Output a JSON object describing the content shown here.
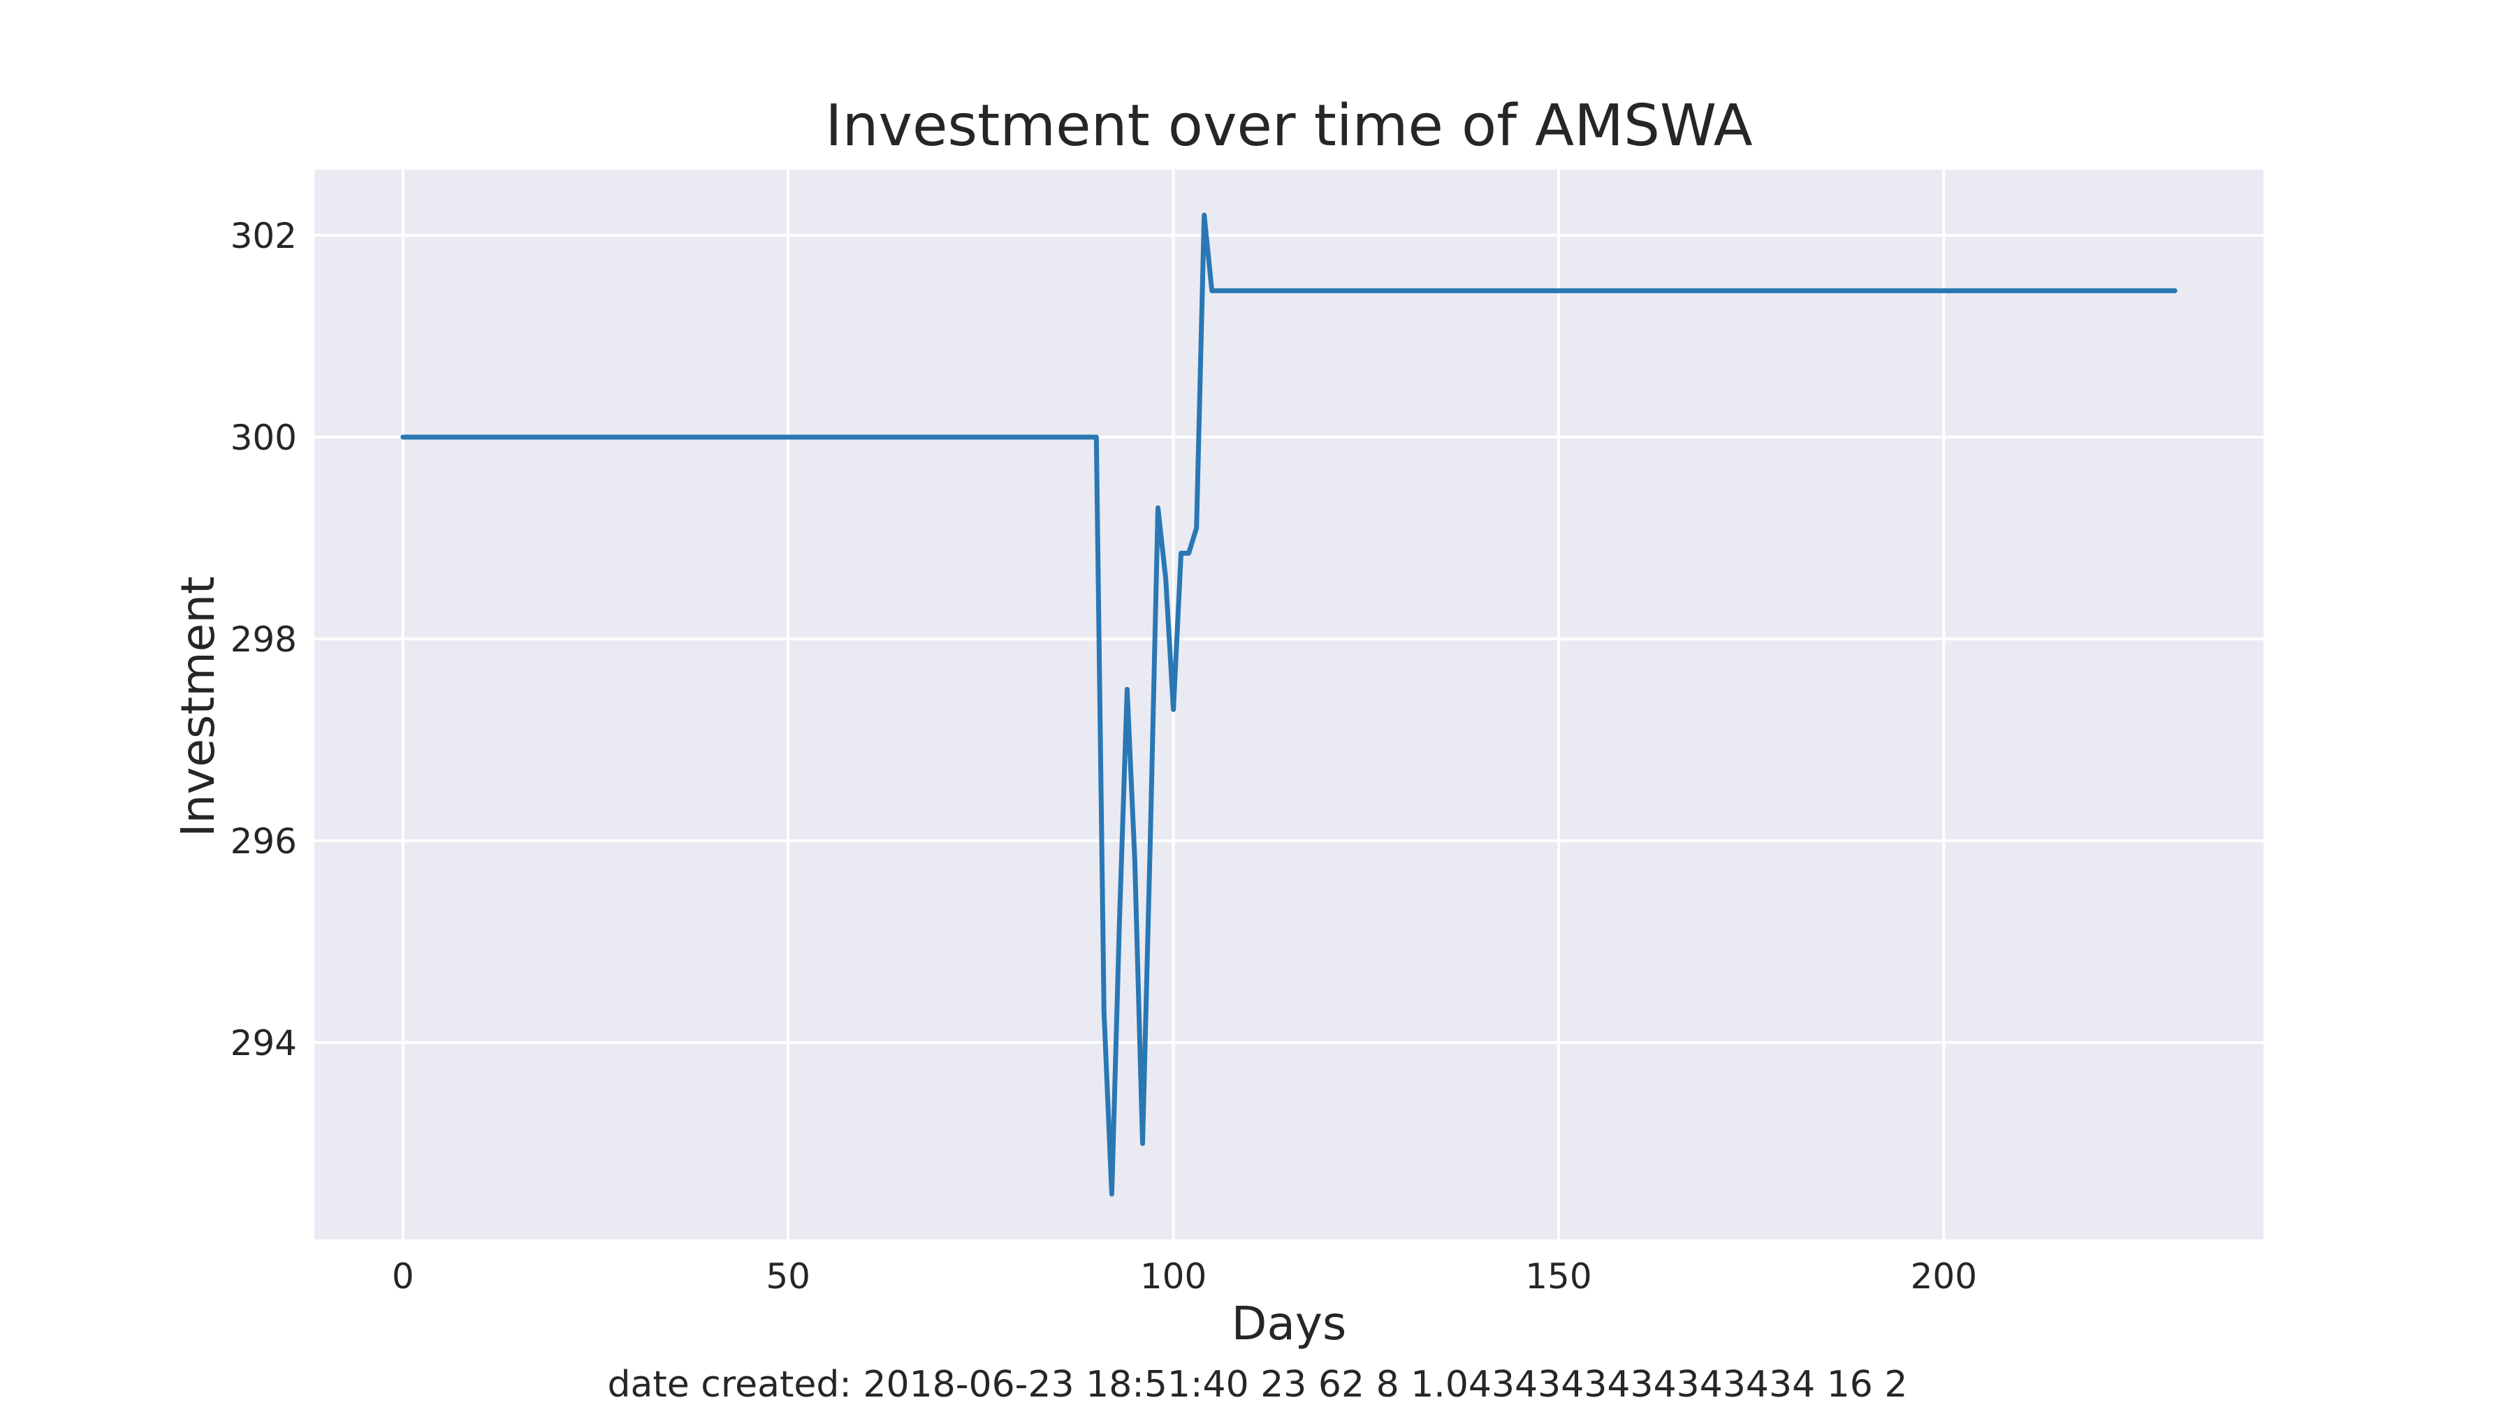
{
  "chart_data": {
    "type": "line",
    "title": "Investment over time of AMSWA",
    "xlabel": "Days",
    "ylabel": "Investment",
    "xlim": [
      -11.5,
      241.5
    ],
    "ylim": [
      292.05,
      302.65
    ],
    "xticks": [
      0,
      50,
      100,
      150,
      200
    ],
    "xtick_labels": [
      "0",
      "50",
      "100",
      "150",
      "200"
    ],
    "yticks": [
      294,
      296,
      298,
      300,
      302
    ],
    "ytick_labels": [
      "294",
      "296",
      "298",
      "300",
      "302"
    ],
    "grid": true,
    "legend": "none",
    "colors": {
      "line": "#2a77b4",
      "plot_background": "#eaeaf2",
      "grid": "#ffffff",
      "text": "#262626"
    },
    "series": [
      {
        "x": [
          0,
          90,
          91,
          92,
          93,
          94,
          95,
          96,
          97,
          98,
          99,
          100,
          101,
          102,
          103,
          104,
          105,
          230
        ],
        "y": [
          300,
          300,
          294.3,
          292.5,
          295.2,
          297.5,
          295.8,
          293.0,
          296.0,
          299.3,
          298.6,
          297.3,
          298.85,
          298.85,
          299.1,
          302.2,
          301.45,
          301.45
        ]
      }
    ]
  },
  "footer": {
    "text": "date created: 2018-06-23 18:51:40 23 62 8 1.0434343434343434 16 2"
  }
}
